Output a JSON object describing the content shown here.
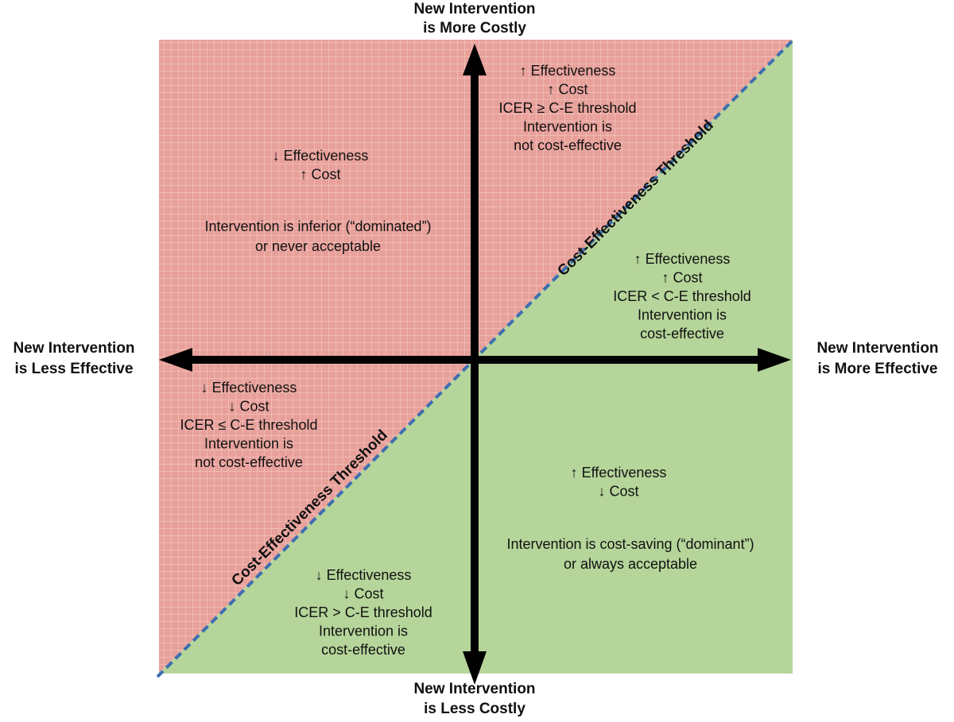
{
  "axis_labels": {
    "top": [
      "New Intervention",
      "is More Costly"
    ],
    "bottom": [
      "New Intervention",
      "is Less Costly"
    ],
    "left": [
      "New Intervention",
      "is Less Effective"
    ],
    "right": [
      "New Intervention",
      "is More Effective"
    ]
  },
  "threshold_labels": [
    "Cost-Effectiveness Threshold",
    "Cost-Effectiveness Threshold"
  ],
  "regions": [
    {
      "lines": [
        "↓ Effectiveness",
        "↑ Cost"
      ],
      "conclusion": [
        "Intervention is inferior (“dominated”)",
        "or never acceptable"
      ]
    },
    {
      "lines": [
        "↑ Effectiveness",
        "↑ Cost",
        "ICER ≥ C-E threshold",
        "Intervention is",
        "not cost-effective"
      ]
    },
    {
      "lines": [
        "↑ Effectiveness",
        "↑ Cost",
        "ICER < C-E threshold",
        "Intervention is",
        "cost-effective"
      ]
    },
    {
      "lines": [
        "↓ Effectiveness",
        "↓ Cost",
        "ICER ≤ C-E threshold",
        "Intervention is",
        "not cost-effective"
      ]
    },
    {
      "lines": [
        "↑ Effectiveness",
        "↓ Cost"
      ],
      "conclusion": [
        "Intervention is cost-saving (“dominant”)",
        "or always acceptable"
      ]
    },
    {
      "lines": [
        "↓ Effectiveness",
        "↓ Cost",
        "ICER > C-E threshold",
        "Intervention is",
        "cost-effective"
      ]
    }
  ]
}
